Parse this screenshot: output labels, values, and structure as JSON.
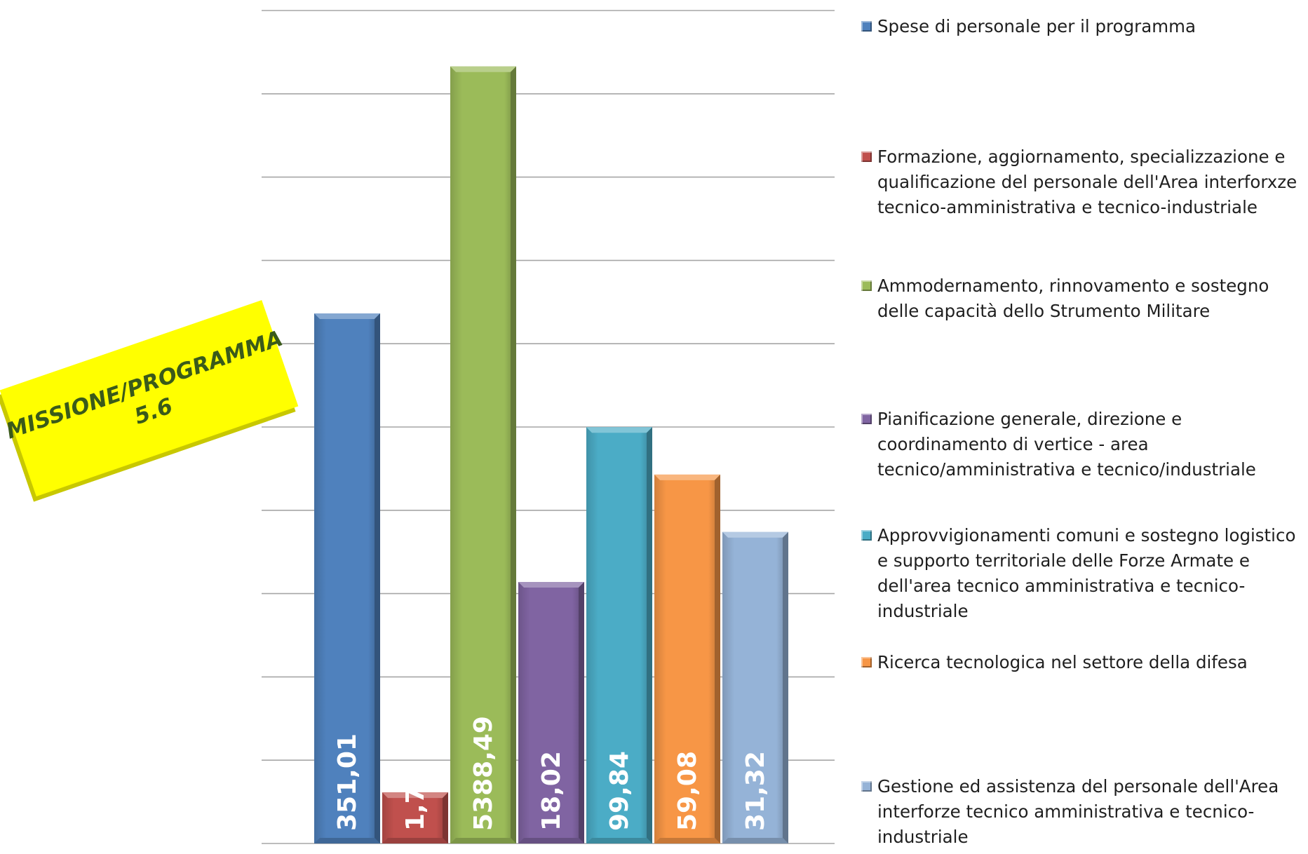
{
  "chart_data": {
    "type": "bar",
    "title_lines": [
      "MISSIONE/PROGRAMMA",
      "5.6"
    ],
    "categories": [
      "Spese di personale per il programma",
      "Formazione, aggiornamento, specializzazione e qualificazione del personale dell'Area interforxze tecnico-amministrativa e tecnico-industriale",
      "Ammodernamento, rinnovamento e sostegno delle capacità dello Strumento Militare",
      "Pianificazione generale, direzione e coordinamento di vertice - area tecnico/amministrativa e tecnico/industriale",
      "Approvvigionamenti comuni e sostegno logistico e supporto territoriale delle Forze Armate e dell'area tecnico amministrativa e tecnico-industriale",
      "Ricerca tecnologica nel settore della difesa",
      "Gestione ed assistenza del personale dell'Area interforze tecnico amministrativa e tecnico-industriale"
    ],
    "values": [
      351.01,
      1.76,
      5388.49,
      18.02,
      99.84,
      59.08,
      31.32
    ],
    "value_labels": [
      "351,01",
      "1,76",
      "5388,49",
      "18,02",
      "99,84",
      "59,08",
      "31,32"
    ],
    "colors": [
      "#4f81bd",
      "#c0504d",
      "#9bbb59",
      "#8064a2",
      "#4bacc6",
      "#f79646",
      "#95b3d7"
    ],
    "log_scale": true,
    "ylim": [
      1,
      10000
    ],
    "grid": true,
    "legend_position": "right"
  }
}
